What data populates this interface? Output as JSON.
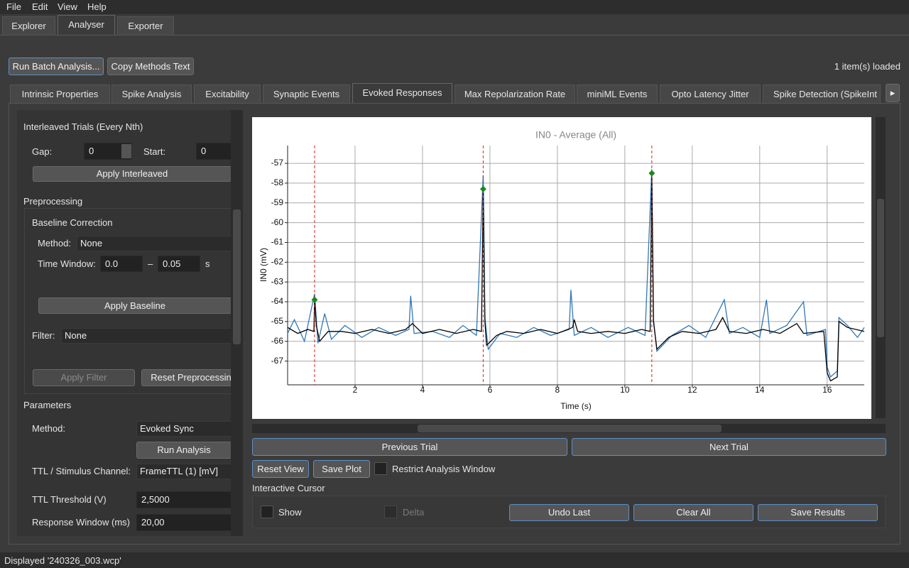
{
  "menu": [
    "File",
    "Edit",
    "View",
    "Help"
  ],
  "main_tabs": [
    "Explorer",
    "Analyser",
    "Exporter"
  ],
  "toolbar": {
    "run_batch": "Run Batch Analysis...",
    "copy_methods": "Copy Methods Text",
    "status": "1 item(s) loaded"
  },
  "analysis_tabs": [
    "Intrinsic Properties",
    "Spike Analysis",
    "Excitability",
    "Synaptic Events",
    "Evoked Responses",
    "Max Repolarization Rate",
    "miniML Events",
    "Opto Latency Jitter",
    "Spike Detection (SpikeInt"
  ],
  "left_panel": {
    "interleaved": {
      "title": "Interleaved Trials (Every Nth)",
      "gap_label": "Gap:",
      "gap": "0",
      "start_label": "Start:",
      "start": "0",
      "apply": "Apply Interleaved"
    },
    "preprocessing": {
      "title": "Preprocessing",
      "baseline_title": "Baseline Correction",
      "method_label": "Method:",
      "method": "None",
      "window_label": "Time Window:",
      "window_start": "0.0",
      "dash": "–",
      "window_end": "0.05",
      "unit": "s",
      "apply_baseline": "Apply Baseline",
      "filter_label": "Filter:",
      "filter": "None",
      "apply_filter": "Apply Filter",
      "reset": "Reset Preprocessin"
    },
    "parameters": {
      "title": "Parameters",
      "method_label": "Method:",
      "method": "Evoked Sync",
      "run": "Run Analysis",
      "ttl_label": "TTL / Stimulus Channel:",
      "ttl": "FrameTTL (1) [mV]",
      "threshold_label": "TTL Threshold (V)",
      "threshold": "2,5000",
      "window_label": "Response Window (ms)",
      "window": "20,00"
    }
  },
  "chart_data": {
    "type": "line",
    "title": "IN0 - Average (All)",
    "xlabel": "Time (s)",
    "ylabel": "IN0 (mV)",
    "xlim": [
      0,
      17.1
    ],
    "ylim": [
      -68.2,
      -56.1
    ],
    "xticks": [
      2,
      4,
      6,
      8,
      10,
      12,
      14,
      16
    ],
    "yticks": [
      -57,
      -58,
      -59,
      -60,
      -61,
      -62,
      -63,
      -64,
      -65,
      -66,
      -67
    ],
    "grid": true,
    "series": [
      {
        "color": "#2f78b8",
        "x": [
          0,
          0.2,
          0.5,
          0.8,
          0.9,
          1.1,
          1.3,
          1.7,
          2.2,
          2.7,
          3.2,
          3.6,
          3.65,
          3.75,
          4.3,
          4.8,
          5.2,
          5.6,
          5.8,
          5.85,
          5.95,
          6.3,
          6.8,
          7.3,
          7.8,
          8.35,
          8.4,
          8.5,
          9.0,
          9.5,
          10.1,
          10.6,
          10.8,
          10.85,
          10.95,
          11.4,
          11.9,
          12.4,
          12.95,
          13.1,
          13.5,
          14.0,
          14.2,
          14.3,
          14.8,
          15.3,
          15.4,
          15.95,
          16.0,
          16.1,
          16.3,
          16.35,
          16.6,
          16.9,
          17.1
        ],
        "values": [
          -65.6,
          -64.9,
          -66.0,
          -63.6,
          -66.1,
          -64.6,
          -65.9,
          -65.2,
          -65.8,
          -65.3,
          -65.7,
          -65.4,
          -63.7,
          -65.6,
          -65.5,
          -65.8,
          -65.2,
          -65.7,
          -57.6,
          -64.8,
          -66.4,
          -65.6,
          -65.8,
          -65.3,
          -65.7,
          -65.4,
          -63.4,
          -65.7,
          -65.3,
          -65.8,
          -65.3,
          -65.7,
          -57.3,
          -64.9,
          -66.5,
          -65.7,
          -65.2,
          -65.8,
          -63.9,
          -65.6,
          -65.3,
          -65.8,
          -63.9,
          -65.6,
          -65.2,
          -64.0,
          -65.7,
          -65.4,
          -67.3,
          -67.8,
          -67.5,
          -64.8,
          -65.2,
          -65.8,
          -65.3
        ]
      },
      {
        "color": "#000000",
        "x": [
          0,
          0.3,
          0.6,
          0.78,
          0.8,
          0.85,
          0.95,
          1.2,
          1.6,
          2.0,
          2.5,
          3.0,
          3.5,
          3.7,
          4.0,
          4.5,
          5.0,
          5.5,
          5.75,
          5.8,
          5.85,
          5.9,
          6.2,
          6.5,
          7.0,
          7.5,
          8.0,
          8.45,
          8.5,
          8.6,
          9.0,
          9.5,
          10.0,
          10.5,
          10.75,
          10.8,
          10.85,
          10.95,
          11.3,
          11.7,
          12.2,
          12.7,
          12.9,
          13.1,
          13.6,
          14.1,
          14.6,
          15.1,
          15.3,
          15.9,
          16.0,
          16.1,
          16.3,
          16.35,
          16.6,
          17.1
        ],
        "values": [
          -65.3,
          -65.6,
          -65.4,
          -65.5,
          -63.9,
          -65.2,
          -66.0,
          -65.5,
          -65.5,
          -65.6,
          -65.4,
          -65.6,
          -65.4,
          -65.1,
          -65.6,
          -65.4,
          -65.6,
          -65.4,
          -65.5,
          -58.3,
          -65.0,
          -66.2,
          -65.7,
          -65.5,
          -65.6,
          -65.4,
          -65.6,
          -65.3,
          -64.9,
          -65.5,
          -65.6,
          -65.5,
          -65.6,
          -65.4,
          -65.5,
          -57.5,
          -65.0,
          -66.4,
          -65.8,
          -65.5,
          -65.6,
          -65.4,
          -64.8,
          -65.5,
          -65.6,
          -65.4,
          -65.6,
          -65.1,
          -65.6,
          -65.5,
          -67.6,
          -68.0,
          -67.8,
          -65.0,
          -65.3,
          -65.5
        ]
      }
    ],
    "markers": {
      "color": "#1a8a1a",
      "x": [
        0.8,
        5.8,
        10.8
      ],
      "values": [
        -63.9,
        -58.3,
        -57.5
      ]
    },
    "stimulus_lines": {
      "color": "#d42020",
      "x": [
        0.8,
        5.8,
        10.8
      ]
    }
  },
  "controls": {
    "previous": "Previous Trial",
    "next": "Next Trial",
    "reset_view": "Reset View",
    "save_plot": "Save Plot",
    "restrict": "Restrict Analysis Window",
    "cursor_title": "Interactive Cursor",
    "show": "Show",
    "delta": "Delta",
    "undo": "Undo Last",
    "clear": "Clear All",
    "save_results": "Save Results"
  },
  "status_bar": "Displayed '240326_003.wcp'"
}
